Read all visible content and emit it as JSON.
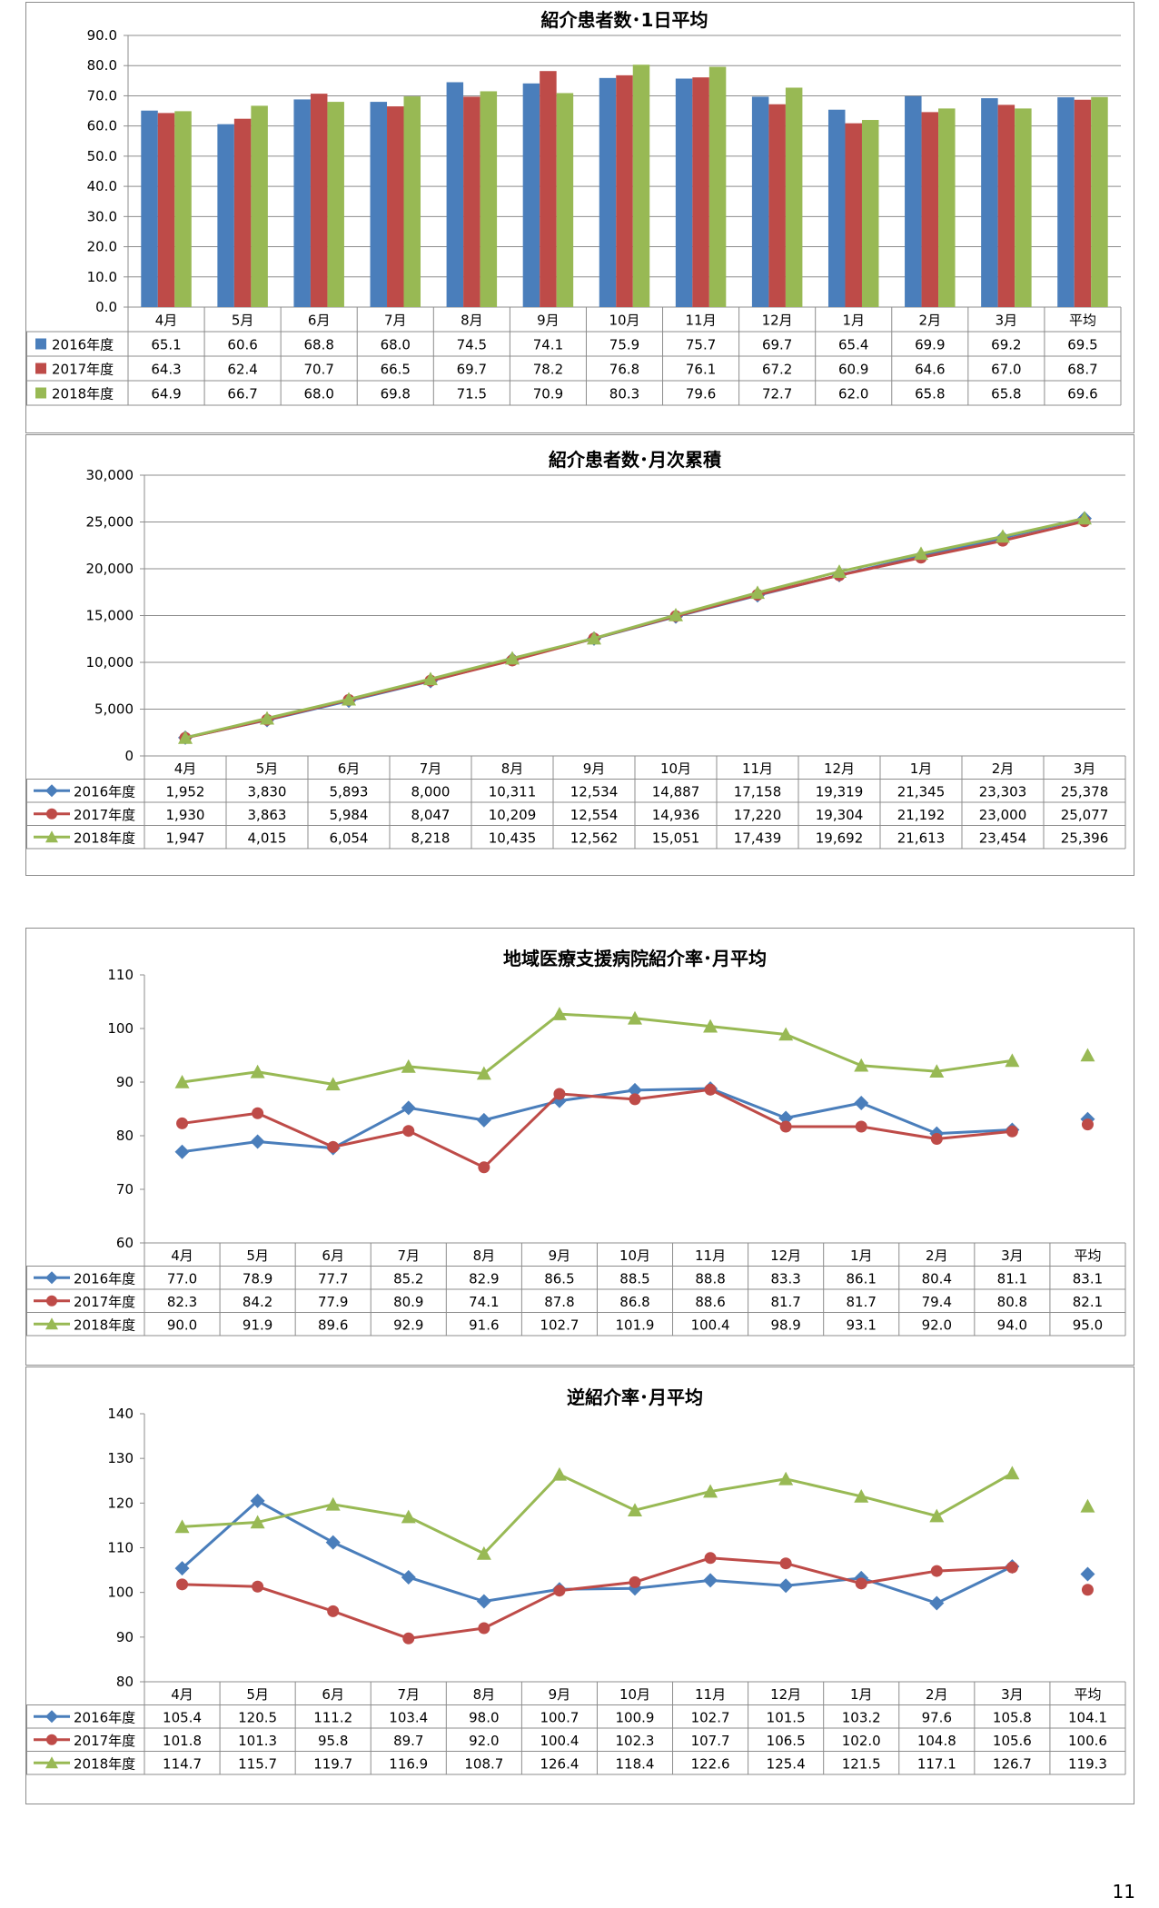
{
  "page": {
    "number": "11"
  },
  "months": [
    "4月",
    "5月",
    "6月",
    "7月",
    "8月",
    "9月",
    "10月",
    "11月",
    "12月",
    "1月",
    "2月",
    "3月"
  ],
  "avg_label": "平均",
  "colors": {
    "2016": "#4a7ebb",
    "2017": "#be4b48",
    "2018": "#98b954"
  },
  "chart_data": [
    {
      "id": "daily",
      "type": "bar",
      "title": "紹介患者数･1日平均",
      "categories": [
        "4月",
        "5月",
        "6月",
        "7月",
        "8月",
        "9月",
        "10月",
        "11月",
        "12月",
        "1月",
        "2月",
        "3月",
        "平均"
      ],
      "ylim": [
        0,
        90
      ],
      "yticks": [
        "0.0",
        "10.0",
        "20.0",
        "30.0",
        "40.0",
        "50.0",
        "60.0",
        "70.0",
        "80.0",
        "90.0"
      ],
      "grid": true,
      "legend": "table",
      "series": [
        {
          "name": "2016年度",
          "values": [
            65.1,
            60.6,
            68.8,
            68.0,
            74.5,
            74.1,
            75.9,
            75.7,
            69.7,
            65.4,
            69.9,
            69.2,
            69.5
          ],
          "labels": [
            "65.1",
            "60.6",
            "68.8",
            "68.0",
            "74.5",
            "74.1",
            "75.9",
            "75.7",
            "69.7",
            "65.4",
            "69.9",
            "69.2",
            "69.5"
          ]
        },
        {
          "name": "2017年度",
          "values": [
            64.3,
            62.4,
            70.7,
            66.5,
            69.7,
            78.2,
            76.8,
            76.1,
            67.2,
            60.9,
            64.6,
            67.0,
            68.7
          ],
          "labels": [
            "64.3",
            "62.4",
            "70.7",
            "66.5",
            "69.7",
            "78.2",
            "76.8",
            "76.1",
            "67.2",
            "60.9",
            "64.6",
            "67.0",
            "68.7"
          ]
        },
        {
          "name": "2018年度",
          "values": [
            64.9,
            66.7,
            68.0,
            69.8,
            71.5,
            70.9,
            80.3,
            79.6,
            72.7,
            62.0,
            65.8,
            65.8,
            69.6
          ],
          "labels": [
            "64.9",
            "66.7",
            "68.0",
            "69.8",
            "71.5",
            "70.9",
            "80.3",
            "79.6",
            "72.7",
            "62.0",
            "65.8",
            "65.8",
            "69.6"
          ]
        }
      ]
    },
    {
      "id": "cumulative",
      "type": "line",
      "title": "紹介患者数･月次累積",
      "categories": [
        "4月",
        "5月",
        "6月",
        "7月",
        "8月",
        "9月",
        "10月",
        "11月",
        "12月",
        "1月",
        "2月",
        "3月"
      ],
      "ylim": [
        0,
        30000
      ],
      "yticks": [
        "0",
        "5,000",
        "10,000",
        "15,000",
        "20,000",
        "25,000",
        "30,000"
      ],
      "grid": true,
      "legend": "table",
      "series": [
        {
          "name": "2016年度",
          "marker": "diamond",
          "values": [
            1952,
            3830,
            5893,
            8000,
            10311,
            12534,
            14887,
            17158,
            19319,
            21345,
            23303,
            25378
          ],
          "labels": [
            "1,952",
            "3,830",
            "5,893",
            "8,000",
            "10,311",
            "12,534",
            "14,887",
            "17,158",
            "19,319",
            "21,345",
            "23,303",
            "25,378"
          ]
        },
        {
          "name": "2017年度",
          "marker": "circle",
          "values": [
            1930,
            3863,
            5984,
            8047,
            10209,
            12554,
            14936,
            17220,
            19304,
            21192,
            23000,
            25077
          ],
          "labels": [
            "1,930",
            "3,863",
            "5,984",
            "8,047",
            "10,209",
            "12,554",
            "14,936",
            "17,220",
            "19,304",
            "21,192",
            "23,000",
            "25,077"
          ]
        },
        {
          "name": "2018年度",
          "marker": "triangle",
          "values": [
            1947,
            4015,
            6054,
            8218,
            10435,
            12562,
            15051,
            17439,
            19692,
            21613,
            23454,
            25396
          ],
          "labels": [
            "1,947",
            "4,015",
            "6,054",
            "8,218",
            "10,435",
            "12,562",
            "15,051",
            "17,439",
            "19,692",
            "21,613",
            "23,454",
            "25,396"
          ]
        }
      ]
    },
    {
      "id": "support",
      "type": "line",
      "title": "地域医療支援病院紹介率･月平均",
      "categories": [
        "4月",
        "5月",
        "6月",
        "7月",
        "8月",
        "9月",
        "10月",
        "11月",
        "12月",
        "1月",
        "2月",
        "3月",
        "平均"
      ],
      "ylim": [
        60,
        110
      ],
      "yticks": [
        "60",
        "70",
        "80",
        "90",
        "100",
        "110"
      ],
      "grid": false,
      "legend": "table",
      "series": [
        {
          "name": "2016年度",
          "marker": "diamond",
          "values": [
            77.0,
            78.9,
            77.7,
            85.2,
            82.9,
            86.5,
            88.5,
            88.8,
            83.3,
            86.1,
            80.4,
            81.1,
            83.1
          ],
          "labels": [
            "77.0",
            "78.9",
            "77.7",
            "85.2",
            "82.9",
            "86.5",
            "88.5",
            "88.8",
            "83.3",
            "86.1",
            "80.4",
            "81.1",
            "83.1"
          ]
        },
        {
          "name": "2017年度",
          "marker": "circle",
          "values": [
            82.3,
            84.2,
            77.9,
            80.9,
            74.1,
            87.8,
            86.8,
            88.6,
            81.7,
            81.7,
            79.4,
            80.8,
            82.1
          ],
          "labels": [
            "82.3",
            "84.2",
            "77.9",
            "80.9",
            "74.1",
            "87.8",
            "86.8",
            "88.6",
            "81.7",
            "81.7",
            "79.4",
            "80.8",
            "82.1"
          ]
        },
        {
          "name": "2018年度",
          "marker": "triangle",
          "values": [
            90.0,
            91.9,
            89.6,
            92.9,
            91.6,
            102.7,
            101.9,
            100.4,
            98.9,
            93.1,
            92.0,
            94.0,
            95.0
          ],
          "labels": [
            "90.0",
            "91.9",
            "89.6",
            "92.9",
            "91.6",
            "102.7",
            "101.9",
            "100.4",
            "98.9",
            "93.1",
            "92.0",
            "94.0",
            "95.0"
          ]
        }
      ]
    },
    {
      "id": "reverse",
      "type": "line",
      "title": "逆紹介率･月平均",
      "categories": [
        "4月",
        "5月",
        "6月",
        "7月",
        "8月",
        "9月",
        "10月",
        "11月",
        "12月",
        "1月",
        "2月",
        "3月",
        "平均"
      ],
      "ylim": [
        80,
        140
      ],
      "yticks": [
        "80",
        "90",
        "100",
        "110",
        "120",
        "130",
        "140"
      ],
      "grid": false,
      "legend": "table",
      "series": [
        {
          "name": "2016年度",
          "marker": "diamond",
          "values": [
            105.4,
            120.5,
            111.2,
            103.4,
            98.0,
            100.7,
            100.9,
            102.7,
            101.5,
            103.2,
            97.6,
            105.8,
            104.1
          ],
          "labels": [
            "105.4",
            "120.5",
            "111.2",
            "103.4",
            "98.0",
            "100.7",
            "100.9",
            "102.7",
            "101.5",
            "103.2",
            "97.6",
            "105.8",
            "104.1"
          ]
        },
        {
          "name": "2017年度",
          "marker": "circle",
          "values": [
            101.8,
            101.3,
            95.8,
            89.7,
            92.0,
            100.4,
            102.3,
            107.7,
            106.5,
            102.0,
            104.8,
            105.6,
            100.6
          ],
          "labels": [
            "101.8",
            "101.3",
            "95.8",
            "89.7",
            "92.0",
            "100.4",
            "102.3",
            "107.7",
            "106.5",
            "102.0",
            "104.8",
            "105.6",
            "100.6"
          ]
        },
        {
          "name": "2018年度",
          "marker": "triangle",
          "values": [
            114.7,
            115.7,
            119.7,
            116.9,
            108.7,
            126.4,
            118.4,
            122.6,
            125.4,
            121.5,
            117.1,
            126.7,
            119.3
          ],
          "labels": [
            "114.7",
            "115.7",
            "119.7",
            "116.9",
            "108.7",
            "126.4",
            "118.4",
            "122.6",
            "125.4",
            "121.5",
            "117.1",
            "126.7",
            "119.3"
          ]
        }
      ]
    }
  ]
}
